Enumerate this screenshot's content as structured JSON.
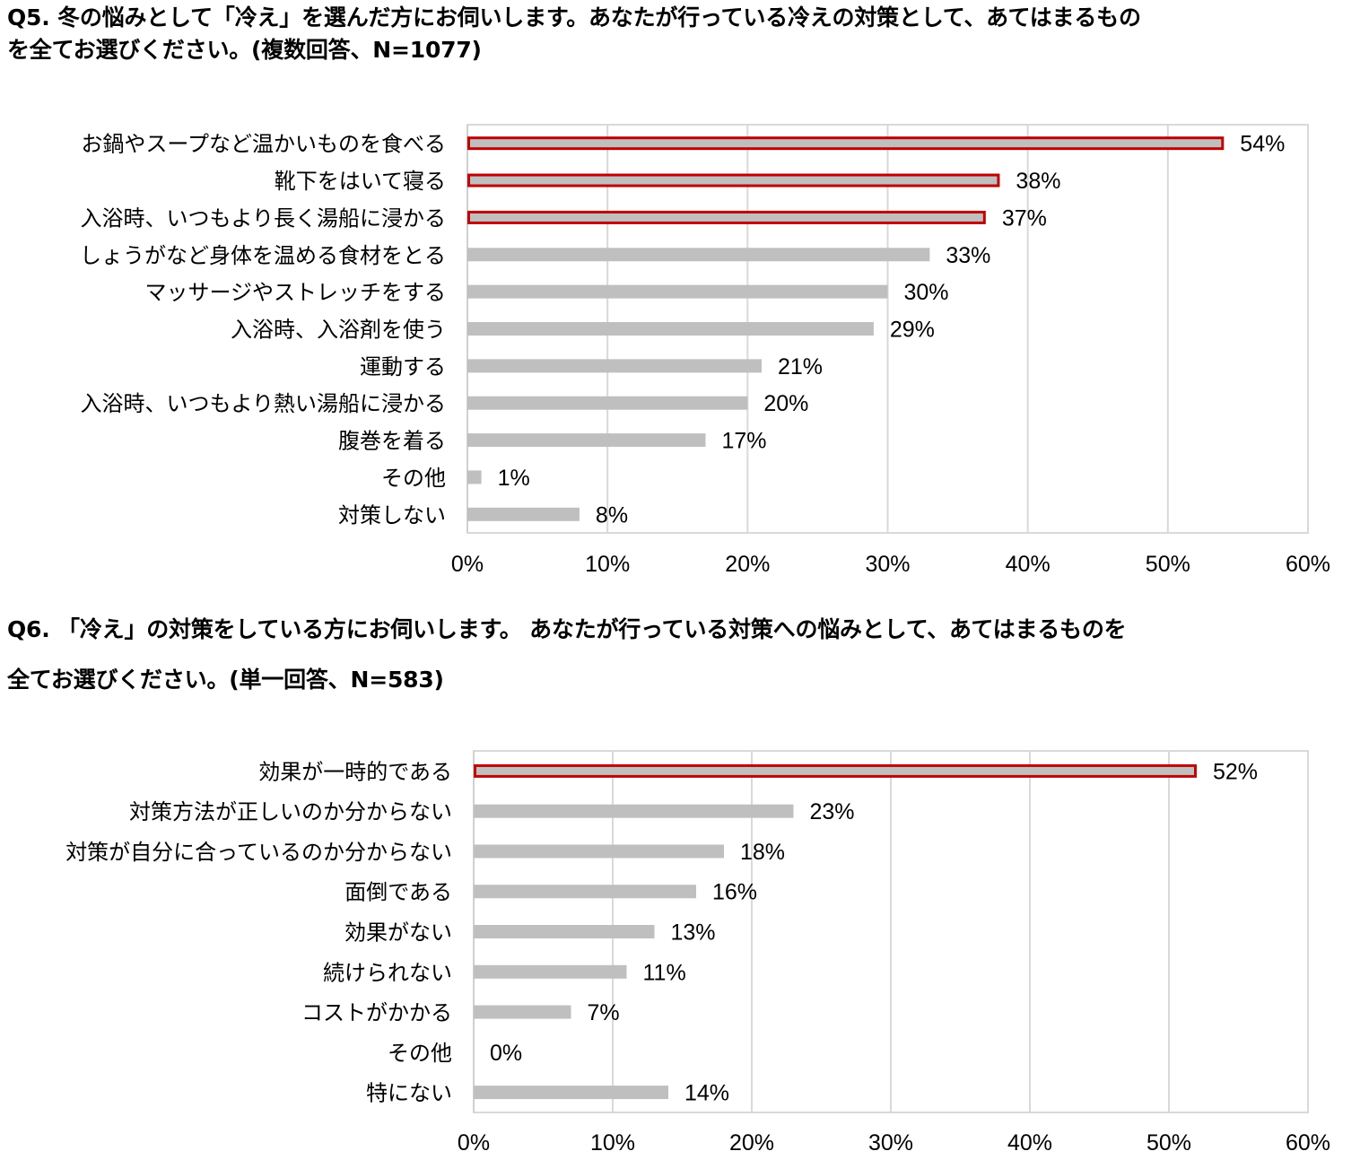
{
  "colors": {
    "bar_fill": "#bfbfbf",
    "highlight_outline": "#c00000",
    "grid": "#d9d9d9",
    "frame": "#d9d9d9"
  },
  "q5": {
    "title_line1": "Q5.  冬の悩みとして「冷え」を選んだ方にお伺いします。あなたが行っている冷えの対策として、あてはまるもの",
    "title_line2": "を全てお選びください。(複数回答、N=1077)"
  },
  "q6": {
    "title_line1": "Q6. 「冷え」の対策をしている方にお伺いします。 あなたが行っている対策への悩みとして、あてはまるものを",
    "title_line2": "全てお選びください。(単一回答、N=583)"
  },
  "chart_data": [
    {
      "type": "bar",
      "orientation": "horizontal",
      "categories": [
        "お鍋やスープなど温かいものを食べる",
        "靴下をはいて寝る",
        "入浴時、いつもより長く湯船に浸かる",
        "しょうがなど身体を温める食材をとる",
        "マッサージやストレッチをする",
        "入浴時、入浴剤を使う",
        "運動する",
        "入浴時、いつもより熱い湯船に浸かる",
        "腹巻を着る",
        "その他",
        "対策しない"
      ],
      "values": [
        54,
        38,
        37,
        33,
        30,
        29,
        21,
        20,
        17,
        1,
        8
      ],
      "value_labels": [
        "54%",
        "38%",
        "37%",
        "33%",
        "30%",
        "29%",
        "21%",
        "20%",
        "17%",
        "1%",
        "8%"
      ],
      "highlighted": [
        true,
        true,
        true,
        false,
        false,
        false,
        false,
        false,
        false,
        false,
        false
      ],
      "xlim": [
        0,
        60
      ],
      "xticks": [
        "0%",
        "10%",
        "20%",
        "30%",
        "40%",
        "50%",
        "60%"
      ],
      "grid": true,
      "legend": "none"
    },
    {
      "type": "bar",
      "orientation": "horizontal",
      "categories": [
        "効果が一時的である",
        "対策方法が正しいのか分からない",
        "対策が自分に合っているのか分からない",
        "面倒である",
        "効果がない",
        "続けられない",
        "コストがかかる",
        "その他",
        "特にない"
      ],
      "values": [
        52,
        23,
        18,
        16,
        13,
        11,
        7,
        0,
        14
      ],
      "value_labels": [
        "52%",
        "23%",
        "18%",
        "16%",
        "13%",
        "11%",
        "7%",
        "0%",
        "14%"
      ],
      "highlighted": [
        true,
        false,
        false,
        false,
        false,
        false,
        false,
        false,
        false
      ],
      "xlim": [
        0,
        60
      ],
      "xticks": [
        "0%",
        "10%",
        "20%",
        "30%",
        "40%",
        "50%",
        "60%"
      ],
      "grid": true,
      "legend": "none"
    }
  ]
}
